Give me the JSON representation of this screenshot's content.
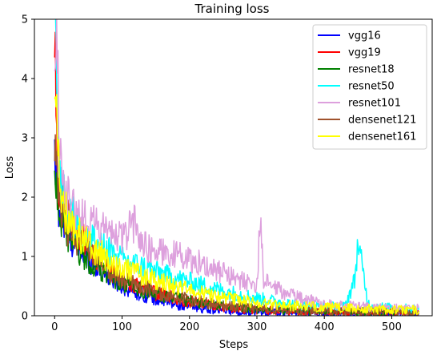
{
  "chart_data": {
    "type": "line",
    "title": "Training loss",
    "xlabel": "Steps",
    "ylabel": "Loss",
    "xlim": [
      -30,
      560
    ],
    "ylim": [
      0,
      5
    ],
    "xticks": [
      0,
      100,
      200,
      300,
      400,
      500
    ],
    "yticks": [
      0,
      1,
      2,
      3,
      4,
      5
    ],
    "grid": false,
    "legend_position": "top-right",
    "steps": [
      0,
      540
    ],
    "series": [
      {
        "name": "vgg16",
        "color": "#0000ff",
        "x": [
          0,
          5,
          10,
          20,
          30,
          50,
          75,
          100,
          125,
          150,
          175,
          200,
          250,
          300,
          350,
          400,
          450,
          500,
          540
        ],
        "y": [
          2.6,
          1.9,
          1.6,
          1.35,
          1.2,
          0.95,
          0.7,
          0.5,
          0.38,
          0.28,
          0.2,
          0.15,
          0.09,
          0.06,
          0.05,
          0.04,
          0.04,
          0.03,
          0.03
        ]
      },
      {
        "name": "vgg19",
        "color": "#ff0000",
        "x": [
          0,
          3,
          6,
          10,
          20,
          30,
          50,
          75,
          100,
          125,
          150,
          175,
          200,
          250,
          300,
          350,
          400,
          450,
          500,
          540
        ],
        "y": [
          5.0,
          3.0,
          2.2,
          1.9,
          1.75,
          1.5,
          1.15,
          0.85,
          0.62,
          0.48,
          0.38,
          0.3,
          0.24,
          0.15,
          0.1,
          0.08,
          0.07,
          0.06,
          0.06,
          0.05
        ]
      },
      {
        "name": "resnet18",
        "color": "#008000",
        "x": [
          0,
          5,
          10,
          20,
          30,
          50,
          75,
          100,
          125,
          150,
          175,
          200,
          250,
          300,
          350,
          400,
          450,
          500,
          540
        ],
        "y": [
          2.5,
          1.9,
          1.6,
          1.3,
          1.15,
          0.9,
          0.7,
          0.55,
          0.45,
          0.37,
          0.3,
          0.25,
          0.17,
          0.12,
          0.09,
          0.08,
          0.07,
          0.07,
          0.06
        ]
      },
      {
        "name": "resnet50",
        "color": "#00ffff",
        "x": [
          0,
          2,
          4,
          8,
          15,
          25,
          40,
          60,
          80,
          100,
          125,
          150,
          175,
          200,
          250,
          300,
          350,
          400,
          430,
          445,
          450,
          455,
          465,
          480,
          500,
          520,
          540
        ],
        "y": [
          5.0,
          4.3,
          3.0,
          2.4,
          2.0,
          1.7,
          1.45,
          1.25,
          1.1,
          0.95,
          0.85,
          0.75,
          0.65,
          0.58,
          0.42,
          0.3,
          0.2,
          0.15,
          0.15,
          0.6,
          1.25,
          0.9,
          0.2,
          0.15,
          0.13,
          0.12,
          0.12
        ]
      },
      {
        "name": "resnet101",
        "color": "#dda0dd",
        "x": [
          0,
          2,
          4,
          6,
          10,
          20,
          30,
          50,
          75,
          100,
          120,
          130,
          150,
          175,
          200,
          225,
          250,
          275,
          300,
          305,
          310,
          320,
          350,
          400,
          450,
          500,
          540
        ],
        "y": [
          5.0,
          3.8,
          5.0,
          3.2,
          2.3,
          2.0,
          1.8,
          1.6,
          1.45,
          1.3,
          1.6,
          1.2,
          1.1,
          1.05,
          0.95,
          0.85,
          0.72,
          0.6,
          0.52,
          1.6,
          0.6,
          0.5,
          0.35,
          0.2,
          0.15,
          0.12,
          0.12
        ]
      },
      {
        "name": "densenet121",
        "color": "#a0522d",
        "x": [
          0,
          5,
          10,
          20,
          30,
          50,
          75,
          100,
          125,
          150,
          175,
          200,
          250,
          300,
          350,
          400,
          450,
          500,
          540
        ],
        "y": [
          2.8,
          2.0,
          1.7,
          1.45,
          1.3,
          1.05,
          0.82,
          0.62,
          0.5,
          0.4,
          0.33,
          0.27,
          0.18,
          0.12,
          0.09,
          0.07,
          0.06,
          0.06,
          0.05
        ]
      },
      {
        "name": "densenet161",
        "color": "#ffff00",
        "x": [
          0,
          2,
          4,
          8,
          15,
          25,
          40,
          60,
          80,
          100,
          125,
          150,
          175,
          200,
          250,
          300,
          350,
          400,
          450,
          500,
          540
        ],
        "y": [
          3.5,
          4.1,
          2.8,
          2.2,
          1.8,
          1.55,
          1.3,
          1.1,
          0.95,
          0.82,
          0.7,
          0.6,
          0.5,
          0.42,
          0.3,
          0.22,
          0.17,
          0.14,
          0.12,
          0.1,
          0.1
        ]
      }
    ]
  }
}
